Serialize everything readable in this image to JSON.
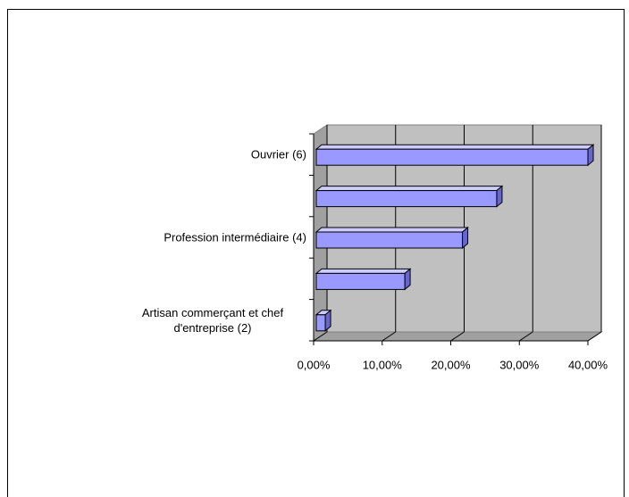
{
  "chart_data": {
    "type": "bar",
    "orientation": "horizontal",
    "categories": [
      "Ouvrier (6)",
      null,
      "Profession intermédiaire (4)",
      null,
      "Artisan commerçant et chef d'entreprise (2)"
    ],
    "values": [
      40,
      26.7,
      21.7,
      13.3,
      1.7
    ],
    "color": "#9999ff",
    "xlim": [
      0,
      40
    ],
    "xticks": [
      {
        "value": 0,
        "label": "0,00%"
      },
      {
        "value": 10,
        "label": "10,00%"
      },
      {
        "value": 20,
        "label": "20,00%"
      },
      {
        "value": 30,
        "label": "30,00%"
      },
      {
        "value": 40,
        "label": "40,00%"
      }
    ],
    "grid": true
  }
}
